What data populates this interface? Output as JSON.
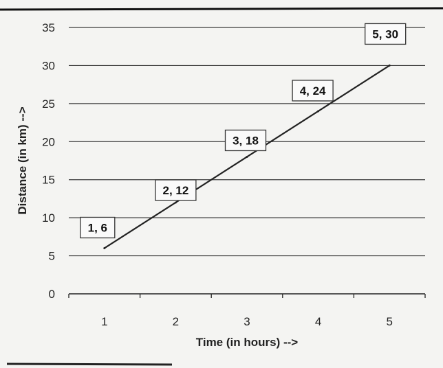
{
  "chart_data": {
    "type": "line",
    "x": [
      1,
      2,
      3,
      4,
      5
    ],
    "series": [
      {
        "values": [
          6,
          12,
          18,
          24,
          30
        ]
      }
    ],
    "data_labels": [
      "1, 6",
      "2, 12",
      "3, 18",
      "4, 24",
      "5, 30"
    ],
    "xlabel": "Time (in hours) -->",
    "ylabel": "Distance (in km) -->",
    "xticks": [
      "1",
      "2",
      "3",
      "4",
      "5"
    ],
    "yticks": [
      "0",
      "5",
      "10",
      "15",
      "20",
      "25",
      "30",
      "35"
    ],
    "xlim": [
      0.5,
      5.5
    ],
    "ylim": [
      0,
      35
    ],
    "grid": true,
    "legend": "none",
    "colors": {
      "line": "#222222",
      "grid": "#3a3a3a",
      "background": "#f4f4f2"
    }
  }
}
